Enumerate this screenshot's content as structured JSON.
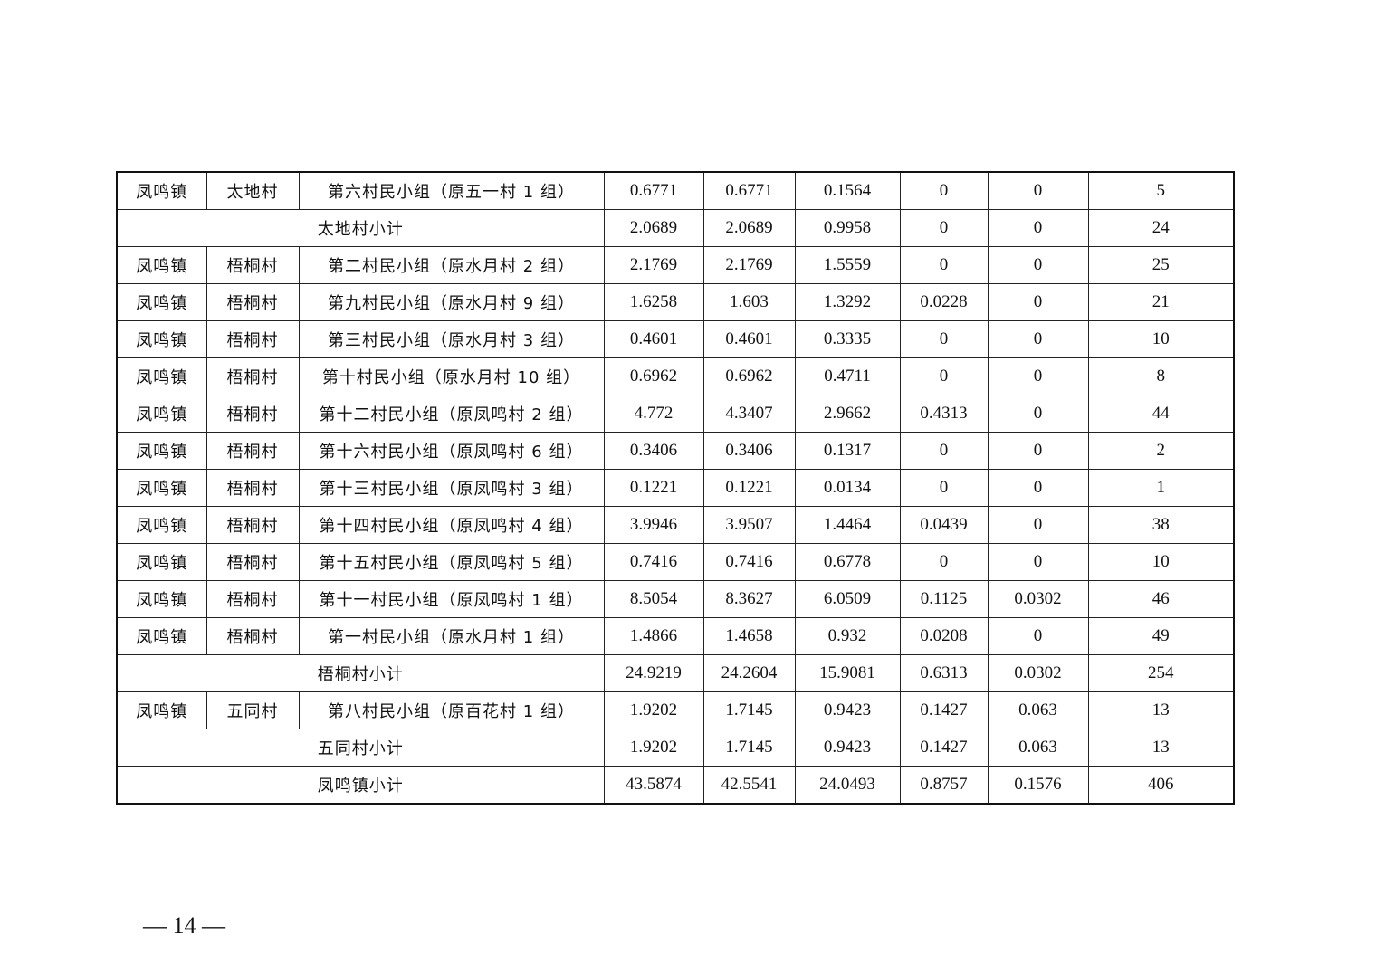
{
  "table": {
    "rows": [
      {
        "type": "item",
        "town": "凤鸣镇",
        "village": "太地村",
        "group": "第六村民小组（原五一村 1 组）",
        "values": [
          "0.6771",
          "0.6771",
          "0.1564",
          "0",
          "0",
          "5"
        ]
      },
      {
        "type": "subtotal",
        "label": "太地村小计",
        "values": [
          "2.0689",
          "2.0689",
          "0.9958",
          "0",
          "0",
          "24"
        ]
      },
      {
        "type": "item",
        "town": "凤鸣镇",
        "village": "梧桐村",
        "group": "第二村民小组（原水月村 2 组）",
        "values": [
          "2.1769",
          "2.1769",
          "1.5559",
          "0",
          "0",
          "25"
        ]
      },
      {
        "type": "item",
        "town": "凤鸣镇",
        "village": "梧桐村",
        "group": "第九村民小组（原水月村 9 组）",
        "values": [
          "1.6258",
          "1.603",
          "1.3292",
          "0.0228",
          "0",
          "21"
        ]
      },
      {
        "type": "item",
        "town": "凤鸣镇",
        "village": "梧桐村",
        "group": "第三村民小组（原水月村 3 组）",
        "values": [
          "0.4601",
          "0.4601",
          "0.3335",
          "0",
          "0",
          "10"
        ]
      },
      {
        "type": "item",
        "town": "凤鸣镇",
        "village": "梧桐村",
        "group": "第十村民小组（原水月村 10 组）",
        "values": [
          "0.6962",
          "0.6962",
          "0.4711",
          "0",
          "0",
          "8"
        ]
      },
      {
        "type": "item",
        "town": "凤鸣镇",
        "village": "梧桐村",
        "group": "第十二村民小组（原凤鸣村 2 组）",
        "values": [
          "4.772",
          "4.3407",
          "2.9662",
          "0.4313",
          "0",
          "44"
        ]
      },
      {
        "type": "item",
        "town": "凤鸣镇",
        "village": "梧桐村",
        "group": "第十六村民小组（原凤鸣村 6 组）",
        "values": [
          "0.3406",
          "0.3406",
          "0.1317",
          "0",
          "0",
          "2"
        ]
      },
      {
        "type": "item",
        "town": "凤鸣镇",
        "village": "梧桐村",
        "group": "第十三村民小组（原凤鸣村 3 组）",
        "values": [
          "0.1221",
          "0.1221",
          "0.0134",
          "0",
          "0",
          "1"
        ]
      },
      {
        "type": "item",
        "town": "凤鸣镇",
        "village": "梧桐村",
        "group": "第十四村民小组（原凤鸣村 4 组）",
        "values": [
          "3.9946",
          "3.9507",
          "1.4464",
          "0.0439",
          "0",
          "38"
        ]
      },
      {
        "type": "item",
        "town": "凤鸣镇",
        "village": "梧桐村",
        "group": "第十五村民小组（原凤鸣村 5 组）",
        "values": [
          "0.7416",
          "0.7416",
          "0.6778",
          "0",
          "0",
          "10"
        ]
      },
      {
        "type": "item",
        "town": "凤鸣镇",
        "village": "梧桐村",
        "group": "第十一村民小组（原凤鸣村 1 组）",
        "values": [
          "8.5054",
          "8.3627",
          "6.0509",
          "0.1125",
          "0.0302",
          "46"
        ]
      },
      {
        "type": "item",
        "town": "凤鸣镇",
        "village": "梧桐村",
        "group": "第一村民小组（原水月村 1 组）",
        "values": [
          "1.4866",
          "1.4658",
          "0.932",
          "0.0208",
          "0",
          "49"
        ]
      },
      {
        "type": "subtotal",
        "label": "梧桐村小计",
        "values": [
          "24.9219",
          "24.2604",
          "15.9081",
          "0.6313",
          "0.0302",
          "254"
        ]
      },
      {
        "type": "item",
        "town": "凤鸣镇",
        "village": "五同村",
        "group": "第八村民小组（原百花村 1 组）",
        "values": [
          "1.9202",
          "1.7145",
          "0.9423",
          "0.1427",
          "0.063",
          "13"
        ]
      },
      {
        "type": "subtotal",
        "label": "五同村小计",
        "values": [
          "1.9202",
          "1.7145",
          "0.9423",
          "0.1427",
          "0.063",
          "13"
        ]
      },
      {
        "type": "subtotal",
        "label": "凤鸣镇小计",
        "values": [
          "43.5874",
          "42.5541",
          "24.0493",
          "0.8757",
          "0.1576",
          "406"
        ]
      }
    ]
  },
  "footer": {
    "page_number": "— 14 —"
  }
}
